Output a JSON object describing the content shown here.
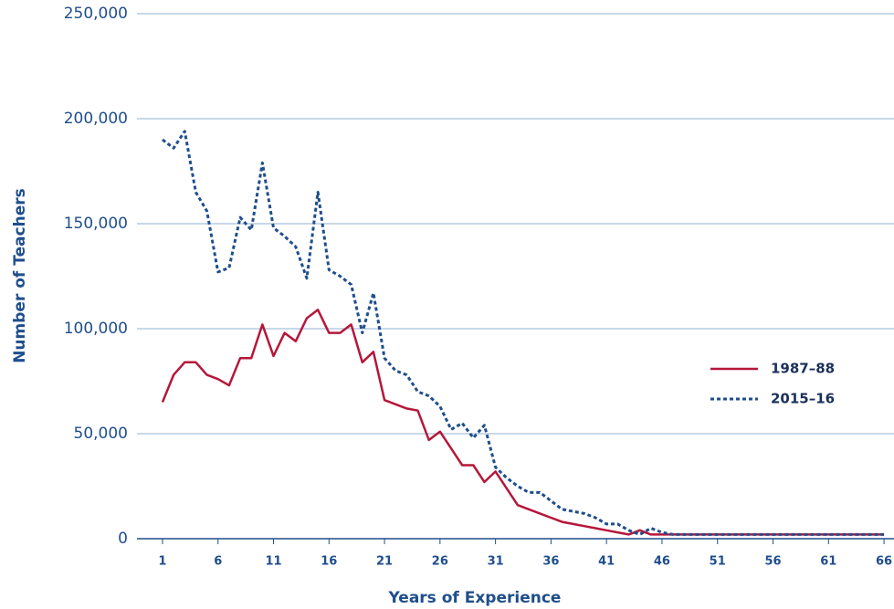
{
  "chart_data": {
    "type": "line",
    "xlabel": "Years of Experience",
    "ylabel": "Number of Teachers",
    "x": [
      1,
      2,
      3,
      4,
      5,
      6,
      7,
      8,
      9,
      10,
      11,
      12,
      13,
      14,
      15,
      16,
      17,
      18,
      19,
      20,
      21,
      22,
      23,
      24,
      25,
      26,
      27,
      28,
      29,
      30,
      31,
      32,
      33,
      34,
      35,
      36,
      37,
      38,
      39,
      40,
      41,
      42,
      43,
      44,
      45,
      46,
      47,
      48,
      49,
      50,
      51,
      52,
      53,
      54,
      55,
      56,
      57,
      58,
      59,
      60,
      61,
      62,
      63,
      64,
      65,
      66
    ],
    "series": [
      {
        "name": "1987–88",
        "color": "#b5173a",
        "dash": false,
        "values": [
          65000,
          78000,
          84000,
          84000,
          78000,
          76000,
          73000,
          86000,
          86000,
          102000,
          87000,
          98000,
          94000,
          105000,
          109000,
          98000,
          98000,
          102000,
          84000,
          89000,
          66000,
          64000,
          62000,
          61000,
          47000,
          51000,
          43000,
          35000,
          35000,
          27000,
          32000,
          24000,
          16000,
          14000,
          12000,
          10000,
          8000,
          7000,
          6000,
          5000,
          4000,
          3000,
          2000,
          4000,
          2000,
          2000,
          2000,
          2000,
          2000,
          2000,
          2000,
          2000,
          2000,
          2000,
          2000,
          2000,
          2000,
          2000,
          2000,
          2000,
          2000,
          2000,
          2000,
          2000,
          2000,
          2000
        ]
      },
      {
        "name": "2015–16",
        "color": "#1f4e8c",
        "dash": true,
        "values": [
          190000,
          186000,
          194000,
          165000,
          156000,
          127000,
          129000,
          153000,
          147000,
          179000,
          148000,
          144000,
          139000,
          124000,
          165000,
          128000,
          125000,
          121000,
          98000,
          117000,
          86000,
          80000,
          78000,
          70000,
          68000,
          63000,
          52000,
          55000,
          48000,
          54000,
          34000,
          29000,
          25000,
          22000,
          22000,
          18000,
          14000,
          13000,
          12000,
          10000,
          7000,
          7000,
          4000,
          2000,
          5000,
          3000,
          2000,
          2000,
          2000,
          2000,
          2000,
          2000,
          2000,
          2000,
          2000,
          2000,
          2000,
          2000,
          2000,
          2000,
          2000,
          2000,
          2000,
          2000,
          2000,
          2000
        ]
      }
    ],
    "xlim": [
      -1.3,
      66.9
    ],
    "xticks": [
      1,
      6,
      11,
      16,
      21,
      26,
      31,
      36,
      41,
      46,
      51,
      56,
      61,
      66
    ],
    "ylim": [
      0,
      250000
    ],
    "yticks": [
      0,
      {
        "value": 50000,
        "label": "50,000"
      },
      {
        "value": 100000,
        "label": "100,000"
      },
      {
        "value": 150000,
        "label": "150,000"
      },
      {
        "value": 200000,
        "label": "200,000"
      },
      {
        "value": 250000,
        "label": "250,000"
      }
    ],
    "grid": true,
    "legend": "right"
  }
}
